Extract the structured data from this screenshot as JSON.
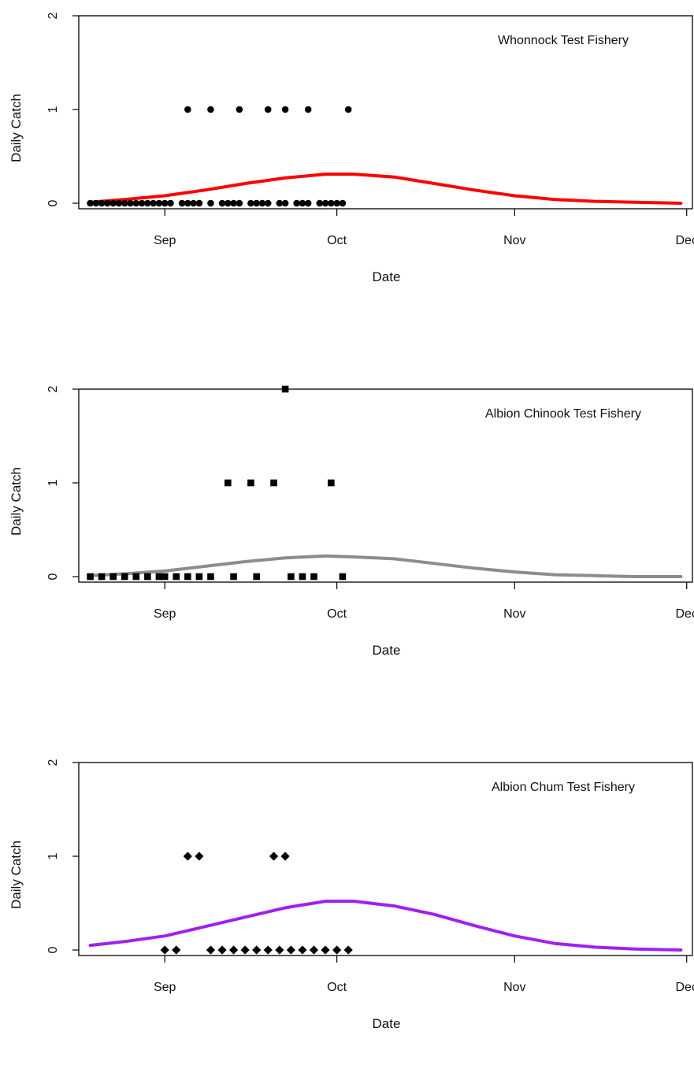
{
  "chart_data": [
    {
      "type": "scatter",
      "title": "",
      "annotation": "Whonnock Test Fishery",
      "xlabel": "Date",
      "ylabel": "Daily Catch",
      "ylim": [
        0,
        2
      ],
      "yticks": [
        0,
        1,
        2
      ],
      "xlim": [
        "2013-08-17",
        "2013-12-02"
      ],
      "xticks": [
        {
          "date": "2013-09-01",
          "label": "Sep"
        },
        {
          "date": "2013-10-01",
          "label": "Oct"
        },
        {
          "date": "2013-11-01",
          "label": "Nov"
        },
        {
          "date": "2013-12-01",
          "label": "Dec"
        }
      ],
      "grid": false,
      "points": {
        "marker": "circle",
        "color": "#000000",
        "x": [
          "2013-08-19",
          "2013-08-20",
          "2013-08-21",
          "2013-08-22",
          "2013-08-23",
          "2013-08-24",
          "2013-08-25",
          "2013-08-26",
          "2013-08-27",
          "2013-08-28",
          "2013-08-29",
          "2013-08-30",
          "2013-08-31",
          "2013-09-01",
          "2013-09-02",
          "2013-09-04",
          "2013-09-05",
          "2013-09-06",
          "2013-09-07",
          "2013-09-09",
          "2013-09-11",
          "2013-09-12",
          "2013-09-13",
          "2013-09-14",
          "2013-09-16",
          "2013-09-17",
          "2013-09-18",
          "2013-09-19",
          "2013-09-21",
          "2013-09-22",
          "2013-09-24",
          "2013-09-25",
          "2013-09-26",
          "2013-09-28",
          "2013-09-29",
          "2013-09-30",
          "2013-10-01",
          "2013-10-02",
          "2013-09-05",
          "2013-09-09",
          "2013-09-14",
          "2013-09-19",
          "2013-09-22",
          "2013-09-26",
          "2013-10-03"
        ],
        "y": [
          0,
          0,
          0,
          0,
          0,
          0,
          0,
          0,
          0,
          0,
          0,
          0,
          0,
          0,
          0,
          0,
          0,
          0,
          0,
          0,
          0,
          0,
          0,
          0,
          0,
          0,
          0,
          0,
          0,
          0,
          0,
          0,
          0,
          0,
          0,
          0,
          0,
          0,
          1,
          1,
          1,
          1,
          1,
          1,
          1
        ]
      },
      "curve": {
        "color": "#ff0000",
        "x": [
          "2013-08-19",
          "2013-08-25",
          "2013-09-01",
          "2013-09-08",
          "2013-09-15",
          "2013-09-22",
          "2013-09-29",
          "2013-10-04",
          "2013-10-11",
          "2013-10-18",
          "2013-10-25",
          "2013-11-01",
          "2013-11-08",
          "2013-11-15",
          "2013-11-22",
          "2013-11-30"
        ],
        "y": [
          0.01,
          0.04,
          0.08,
          0.14,
          0.21,
          0.27,
          0.31,
          0.31,
          0.28,
          0.21,
          0.14,
          0.08,
          0.04,
          0.02,
          0.01,
          0.0
        ]
      }
    },
    {
      "type": "scatter",
      "title": "",
      "annotation": "Albion Chinook Test Fishery",
      "xlabel": "Date",
      "ylabel": "Daily Catch",
      "ylim": [
        0,
        2
      ],
      "yticks": [
        0,
        1,
        2
      ],
      "xlim": [
        "2013-08-17",
        "2013-12-02"
      ],
      "xticks": [
        {
          "date": "2013-09-01",
          "label": "Sep"
        },
        {
          "date": "2013-10-01",
          "label": "Oct"
        },
        {
          "date": "2013-11-01",
          "label": "Nov"
        },
        {
          "date": "2013-12-01",
          "label": "Dec"
        }
      ],
      "grid": false,
      "points": {
        "marker": "square",
        "color": "#000000",
        "x": [
          "2013-08-19",
          "2013-08-21",
          "2013-08-23",
          "2013-08-25",
          "2013-08-27",
          "2013-08-29",
          "2013-08-31",
          "2013-09-01",
          "2013-09-03",
          "2013-09-05",
          "2013-09-07",
          "2013-09-09",
          "2013-09-13",
          "2013-09-17",
          "2013-09-23",
          "2013-09-25",
          "2013-09-27",
          "2013-10-02",
          "2013-09-12",
          "2013-09-16",
          "2013-09-20",
          "2013-09-22",
          "2013-09-30"
        ],
        "y": [
          0,
          0,
          0,
          0,
          0,
          0,
          0,
          0,
          0,
          0,
          0,
          0,
          0,
          0,
          0,
          0,
          0,
          0,
          1,
          1,
          1,
          2,
          1
        ]
      },
      "curve": {
        "color": "#8c8c8c",
        "x": [
          "2013-08-19",
          "2013-08-25",
          "2013-09-01",
          "2013-09-08",
          "2013-09-15",
          "2013-09-22",
          "2013-09-29",
          "2013-10-04",
          "2013-10-11",
          "2013-10-18",
          "2013-10-25",
          "2013-11-01",
          "2013-11-08",
          "2013-11-15",
          "2013-11-22",
          "2013-11-30"
        ],
        "y": [
          0.01,
          0.03,
          0.06,
          0.11,
          0.16,
          0.2,
          0.22,
          0.21,
          0.19,
          0.14,
          0.09,
          0.05,
          0.02,
          0.01,
          0.0,
          0.0
        ]
      }
    },
    {
      "type": "scatter",
      "title": "",
      "annotation": "Albion Chum Test Fishery",
      "xlabel": "Date",
      "ylabel": "Daily Catch",
      "ylim": [
        0,
        2
      ],
      "yticks": [
        0,
        1,
        2
      ],
      "xlim": [
        "2013-08-17",
        "2013-12-02"
      ],
      "xticks": [
        {
          "date": "2013-09-01",
          "label": "Sep"
        },
        {
          "date": "2013-10-01",
          "label": "Oct"
        },
        {
          "date": "2013-11-01",
          "label": "Nov"
        },
        {
          "date": "2013-12-01",
          "label": "Dec"
        }
      ],
      "grid": false,
      "points": {
        "marker": "diamond",
        "color": "#000000",
        "x": [
          "2013-09-01",
          "2013-09-03",
          "2013-09-05",
          "2013-09-07",
          "2013-09-09",
          "2013-09-11",
          "2013-09-13",
          "2013-09-15",
          "2013-09-17",
          "2013-09-19",
          "2013-09-21",
          "2013-09-23",
          "2013-09-25",
          "2013-09-27",
          "2013-09-29",
          "2013-10-01",
          "2013-10-03",
          "2013-09-20",
          "2013-09-22"
        ],
        "y": [
          0,
          0,
          1,
          1,
          0,
          0,
          0,
          0,
          0,
          0,
          0,
          0,
          0,
          0,
          0,
          0,
          0,
          1,
          1
        ]
      },
      "curve": {
        "color": "#a020f0",
        "x": [
          "2013-08-19",
          "2013-08-25",
          "2013-09-01",
          "2013-09-08",
          "2013-09-15",
          "2013-09-22",
          "2013-09-29",
          "2013-10-04",
          "2013-10-11",
          "2013-10-18",
          "2013-10-25",
          "2013-11-01",
          "2013-11-08",
          "2013-11-15",
          "2013-11-22",
          "2013-11-30"
        ],
        "y": [
          0.05,
          0.09,
          0.15,
          0.25,
          0.35,
          0.45,
          0.52,
          0.52,
          0.47,
          0.38,
          0.26,
          0.15,
          0.07,
          0.03,
          0.01,
          0.0
        ]
      }
    }
  ]
}
